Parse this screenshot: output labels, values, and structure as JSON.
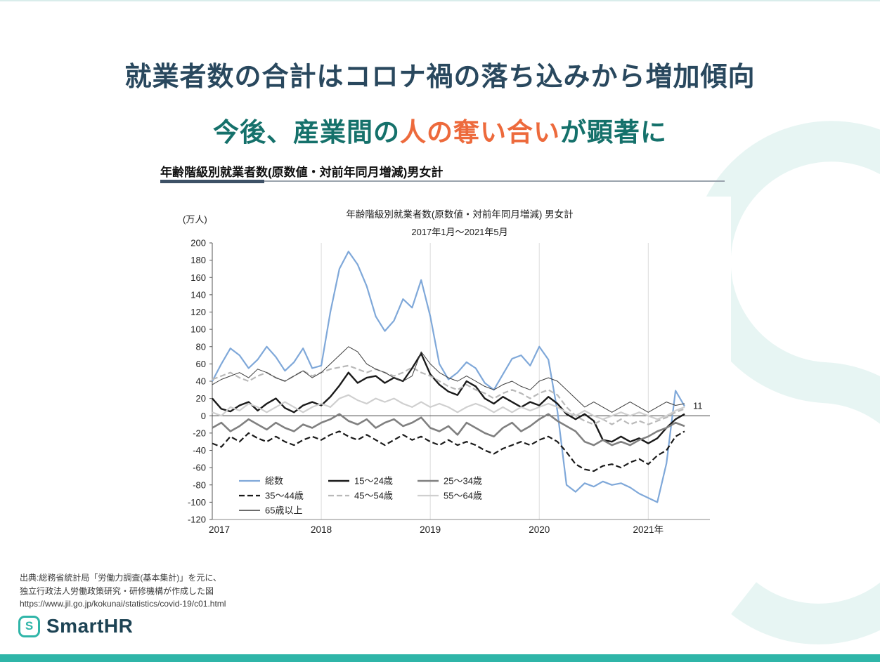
{
  "theme": {
    "accent_teal": "#2FB5A8",
    "title_navy": "#29485E",
    "title_teal": "#15716B",
    "highlight_orange": "#ED6A3C",
    "brand_text": "#1D4354",
    "watermark": "#E7F5F3"
  },
  "slide": {
    "title_line1": "就業者数の合計はコロナ禍の落ち込みから増加傾向",
    "title_line2": {
      "prefix": "今後、産業間の",
      "highlight": "人の奪い合い",
      "suffix": "が顕著に"
    }
  },
  "chart_header": "年齢階級別就業者数(原数値・対前年同月増減)男女計",
  "chart_data": {
    "type": "line",
    "title": "年齢階級別就業者数(原数値・対前年同月増減) 男女計",
    "subtitle": "2017年1月〜2021年5月",
    "y_unit_label": "(万人)",
    "ylim": [
      -120,
      200
    ],
    "ytick_step": 20,
    "grid": "vertical-year-lines",
    "legend_position": "inside-bottom-left",
    "x_start": "2017-01",
    "x_end": "2021-05",
    "x_tick_labels": [
      "2017",
      "2018",
      "2019",
      "2020",
      "2021年"
    ],
    "year_start_indices": [
      0,
      12,
      24,
      36,
      48
    ],
    "end_annotation": {
      "text": "11",
      "value": 11
    },
    "series": [
      {
        "name": "総数",
        "color": "#7FA8D9",
        "width": 2.2,
        "dash": "",
        "values": [
          40,
          60,
          78,
          70,
          55,
          65,
          80,
          68,
          52,
          62,
          78,
          55,
          58,
          120,
          170,
          190,
          175,
          150,
          115,
          98,
          110,
          135,
          125,
          157,
          115,
          60,
          42,
          50,
          62,
          55,
          38,
          30,
          48,
          66,
          70,
          58,
          80,
          65,
          5,
          -80,
          -88,
          -78,
          -82,
          -76,
          -80,
          -78,
          -83,
          -90,
          -95,
          -100,
          -55,
          29,
          11
        ]
      },
      {
        "name": "15〜24歳",
        "color": "#1A1A1A",
        "width": 2.4,
        "dash": "",
        "values": [
          20,
          8,
          5,
          12,
          16,
          6,
          14,
          20,
          9,
          4,
          12,
          16,
          12,
          22,
          35,
          50,
          38,
          44,
          46,
          38,
          44,
          40,
          55,
          72,
          48,
          36,
          28,
          24,
          40,
          34,
          20,
          14,
          22,
          16,
          10,
          16,
          12,
          22,
          14,
          2,
          -4,
          2,
          -6,
          -28,
          -30,
          -24,
          -30,
          -26,
          -32,
          -26,
          -14,
          -4,
          2
        ]
      },
      {
        "name": "25〜34歳",
        "color": "#808080",
        "width": 2.6,
        "dash": "",
        "values": [
          -14,
          -8,
          -18,
          -12,
          -4,
          -10,
          -16,
          -8,
          -14,
          -18,
          -10,
          -14,
          -8,
          -4,
          2,
          -6,
          -10,
          -4,
          -14,
          -8,
          -4,
          -12,
          -8,
          -2,
          -14,
          -18,
          -12,
          -22,
          -8,
          -14,
          -20,
          -24,
          -14,
          -8,
          -18,
          -12,
          -4,
          2,
          -6,
          -12,
          -18,
          -30,
          -34,
          -28,
          -34,
          -30,
          -34,
          -28,
          -24,
          -18,
          -14,
          -8,
          -12
        ]
      },
      {
        "name": "35〜44歳",
        "color": "#1A1A1A",
        "width": 2.2,
        "dash": "8 4",
        "values": [
          -32,
          -36,
          -24,
          -30,
          -20,
          -26,
          -30,
          -24,
          -30,
          -34,
          -28,
          -24,
          -28,
          -22,
          -18,
          -24,
          -28,
          -22,
          -28,
          -34,
          -28,
          -22,
          -28,
          -24,
          -30,
          -34,
          -28,
          -34,
          -30,
          -34,
          -40,
          -44,
          -38,
          -34,
          -30,
          -34,
          -28,
          -24,
          -30,
          -42,
          -56,
          -62,
          -64,
          -58,
          -56,
          -60,
          -54,
          -50,
          -56,
          -46,
          -40,
          -24,
          -18
        ]
      },
      {
        "name": "45〜54歳",
        "color": "#B9B9B9",
        "width": 2.2,
        "dash": "8 4",
        "values": [
          42,
          46,
          50,
          44,
          40,
          46,
          50,
          44,
          40,
          46,
          52,
          46,
          50,
          54,
          56,
          58,
          54,
          50,
          54,
          50,
          46,
          50,
          56,
          50,
          46,
          40,
          34,
          30,
          36,
          30,
          26,
          20,
          26,
          30,
          26,
          20,
          26,
          30,
          24,
          10,
          0,
          -6,
          -10,
          -4,
          -10,
          -4,
          -10,
          -6,
          -10,
          -6,
          -2,
          4,
          8
        ]
      },
      {
        "name": "55〜64歳",
        "color": "#CFCFCF",
        "width": 2.2,
        "dash": "",
        "values": [
          4,
          0,
          10,
          6,
          14,
          10,
          4,
          10,
          16,
          10,
          4,
          10,
          14,
          10,
          20,
          24,
          18,
          14,
          20,
          16,
          20,
          14,
          10,
          16,
          10,
          14,
          10,
          4,
          10,
          14,
          10,
          4,
          10,
          4,
          10,
          6,
          10,
          14,
          10,
          4,
          0,
          6,
          0,
          -4,
          0,
          4,
          0,
          4,
          0,
          -4,
          0,
          6,
          10
        ]
      },
      {
        "name": "65歳以上",
        "color": "#3C3C3C",
        "width": 1,
        "dash": "",
        "values": [
          36,
          42,
          46,
          50,
          44,
          54,
          50,
          44,
          40,
          46,
          52,
          44,
          50,
          60,
          70,
          80,
          74,
          60,
          54,
          50,
          44,
          40,
          46,
          74,
          60,
          50,
          44,
          40,
          46,
          40,
          34,
          30,
          36,
          40,
          34,
          30,
          40,
          44,
          40,
          30,
          20,
          10,
          16,
          10,
          4,
          10,
          16,
          10,
          4,
          10,
          16,
          12,
          14
        ]
      }
    ]
  },
  "source": {
    "line1": "出典:総務省統計局「労働力調査(基本集計)」を元に、",
    "line2": "独立行政法人労働政策研究・研修機構が作成した図",
    "line3": "https://www.jil.go.jp/kokunai/statistics/covid-19/c01.html"
  },
  "footer": {
    "brand": "SmartHR"
  }
}
